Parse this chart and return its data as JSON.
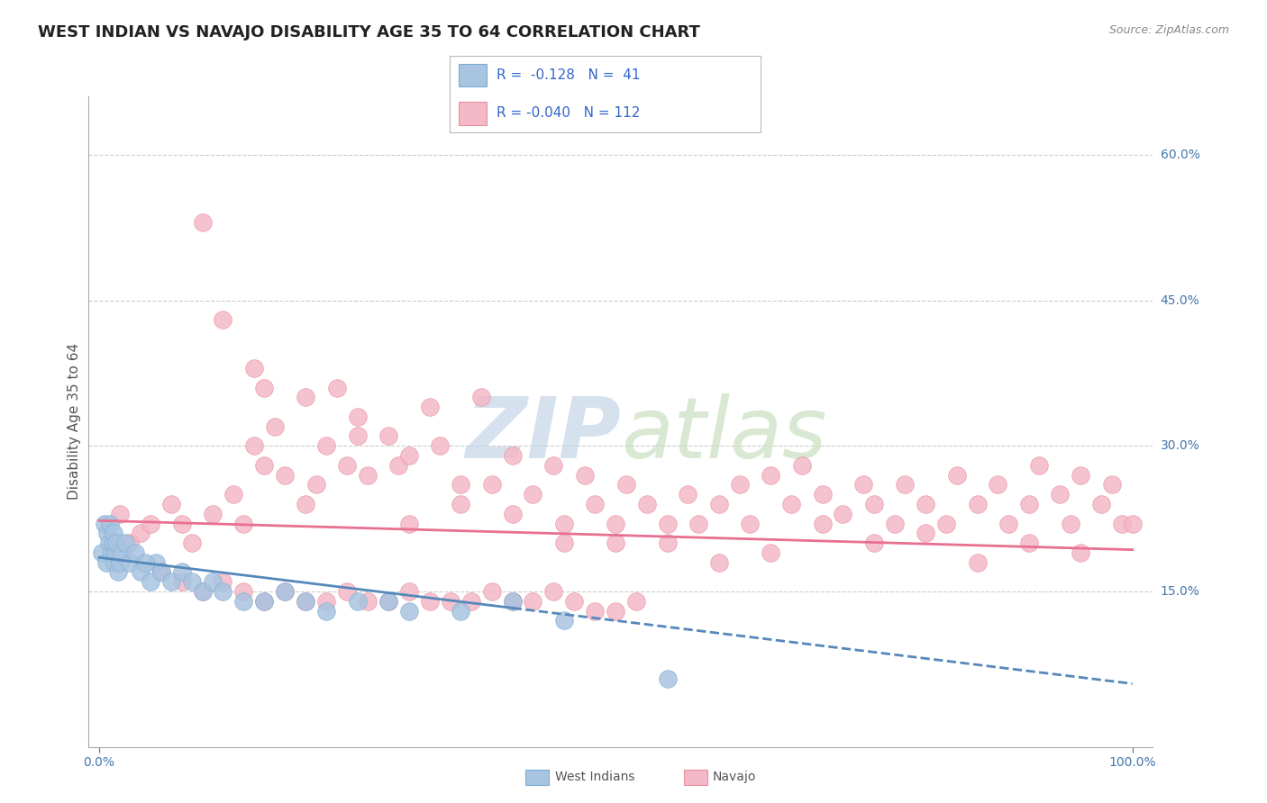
{
  "title": "WEST INDIAN VS NAVAJO DISABILITY AGE 35 TO 64 CORRELATION CHART",
  "source_text": "Source: ZipAtlas.com",
  "ylabel": "Disability Age 35 to 64",
  "west_indian_color": "#a8c4e0",
  "west_indian_edge_color": "#7badd4",
  "west_indian_line_color": "#5588bb",
  "navajo_color": "#f4b8c8",
  "navajo_edge_color": "#e8929a",
  "navajo_line_color": "#e87090",
  "background_color": "#ffffff",
  "grid_color": "#cccccc",
  "tick_color": "#4477aa",
  "title_color": "#222222",
  "source_color": "#888888",
  "ylabel_color": "#555555",
  "watermark_zip_color": "#c5d5e8",
  "watermark_atlas_color": "#c8dfc0",
  "legend_r1": "R =  -0.128   N =  41",
  "legend_r2": "R = -0.040   N = 112",
  "legend_text_color": "#3366cc",
  "legend_box_color1": "#a8c4e0",
  "legend_box_color2": "#f4b8c8",
  "bottom_legend_wi": "West Indians",
  "bottom_legend_nav": "Navajo",
  "wi_x": [
    0.3,
    0.5,
    0.7,
    0.8,
    1.0,
    1.1,
    1.2,
    1.3,
    1.4,
    1.5,
    1.6,
    1.7,
    1.8,
    2.0,
    2.2,
    2.5,
    3.0,
    3.5,
    4.0,
    5.0,
    5.5,
    6.0,
    7.0,
    8.0,
    9.0,
    10.0,
    11.0,
    12.0,
    14.0,
    16.0,
    18.0,
    20.0,
    22.0,
    25.0,
    28.0,
    30.0,
    35.0,
    40.0,
    45.0,
    55.0,
    4.5
  ],
  "wi_y": [
    0.19,
    0.22,
    0.18,
    0.21,
    0.2,
    0.22,
    0.19,
    0.2,
    0.21,
    0.18,
    0.19,
    0.2,
    0.17,
    0.18,
    0.19,
    0.2,
    0.18,
    0.19,
    0.17,
    0.16,
    0.18,
    0.17,
    0.16,
    0.17,
    0.16,
    0.15,
    0.16,
    0.15,
    0.14,
    0.14,
    0.15,
    0.14,
    0.13,
    0.14,
    0.14,
    0.13,
    0.13,
    0.14,
    0.12,
    0.06,
    0.18
  ],
  "nav_x": [
    2.0,
    3.0,
    4.0,
    5.0,
    7.0,
    8.0,
    9.0,
    10.0,
    11.0,
    13.0,
    14.0,
    15.0,
    16.0,
    17.0,
    18.0,
    20.0,
    21.0,
    22.0,
    24.0,
    25.0,
    26.0,
    28.0,
    29.0,
    30.0,
    32.0,
    33.0,
    35.0,
    37.0,
    38.0,
    40.0,
    42.0,
    44.0,
    45.0,
    47.0,
    48.0,
    50.0,
    51.0,
    53.0,
    55.0,
    57.0,
    58.0,
    60.0,
    62.0,
    63.0,
    65.0,
    67.0,
    68.0,
    70.0,
    72.0,
    74.0,
    75.0,
    77.0,
    78.0,
    80.0,
    82.0,
    83.0,
    85.0,
    87.0,
    88.0,
    90.0,
    91.0,
    93.0,
    94.0,
    95.0,
    97.0,
    98.0,
    99.0,
    100.0,
    12.0,
    15.0,
    16.0,
    20.0,
    23.0,
    25.0,
    30.0,
    35.0,
    40.0,
    45.0,
    50.0,
    55.0,
    60.0,
    65.0,
    70.0,
    75.0,
    80.0,
    85.0,
    90.0,
    95.0,
    6.0,
    8.0,
    10.0,
    12.0,
    14.0,
    16.0,
    18.0,
    20.0,
    22.0,
    24.0,
    26.0,
    28.0,
    30.0,
    32.0,
    34.0,
    36.0,
    38.0,
    40.0,
    42.0,
    44.0,
    46.0,
    48.0,
    50.0,
    52.0
  ],
  "nav_y": [
    0.23,
    0.2,
    0.21,
    0.22,
    0.24,
    0.22,
    0.2,
    0.53,
    0.23,
    0.25,
    0.22,
    0.3,
    0.28,
    0.32,
    0.27,
    0.24,
    0.26,
    0.3,
    0.28,
    0.31,
    0.27,
    0.31,
    0.28,
    0.22,
    0.34,
    0.3,
    0.24,
    0.35,
    0.26,
    0.29,
    0.25,
    0.28,
    0.22,
    0.27,
    0.24,
    0.22,
    0.26,
    0.24,
    0.22,
    0.25,
    0.22,
    0.24,
    0.26,
    0.22,
    0.27,
    0.24,
    0.28,
    0.25,
    0.23,
    0.26,
    0.24,
    0.22,
    0.26,
    0.24,
    0.22,
    0.27,
    0.24,
    0.26,
    0.22,
    0.24,
    0.28,
    0.25,
    0.22,
    0.27,
    0.24,
    0.26,
    0.22,
    0.22,
    0.43,
    0.38,
    0.36,
    0.35,
    0.36,
    0.33,
    0.29,
    0.26,
    0.23,
    0.2,
    0.2,
    0.2,
    0.18,
    0.19,
    0.22,
    0.2,
    0.21,
    0.18,
    0.2,
    0.19,
    0.17,
    0.16,
    0.15,
    0.16,
    0.15,
    0.14,
    0.15,
    0.14,
    0.14,
    0.15,
    0.14,
    0.14,
    0.15,
    0.14,
    0.14,
    0.14,
    0.15,
    0.14,
    0.14,
    0.15,
    0.14,
    0.13,
    0.13,
    0.14
  ],
  "xlim": [
    0,
    100
  ],
  "ylim": [
    0.0,
    0.65
  ],
  "y_ticks": [
    0.15,
    0.3,
    0.45,
    0.6
  ],
  "y_tick_labels": [
    "15.0%",
    "30.0%",
    "45.0%",
    "60.0%"
  ],
  "x_ticks": [
    0,
    100
  ],
  "x_tick_labels": [
    "0.0%",
    "100.0%"
  ],
  "title_fontsize": 13,
  "tick_fontsize": 10,
  "axis_label_fontsize": 11,
  "legend_fontsize": 11,
  "source_fontsize": 9
}
